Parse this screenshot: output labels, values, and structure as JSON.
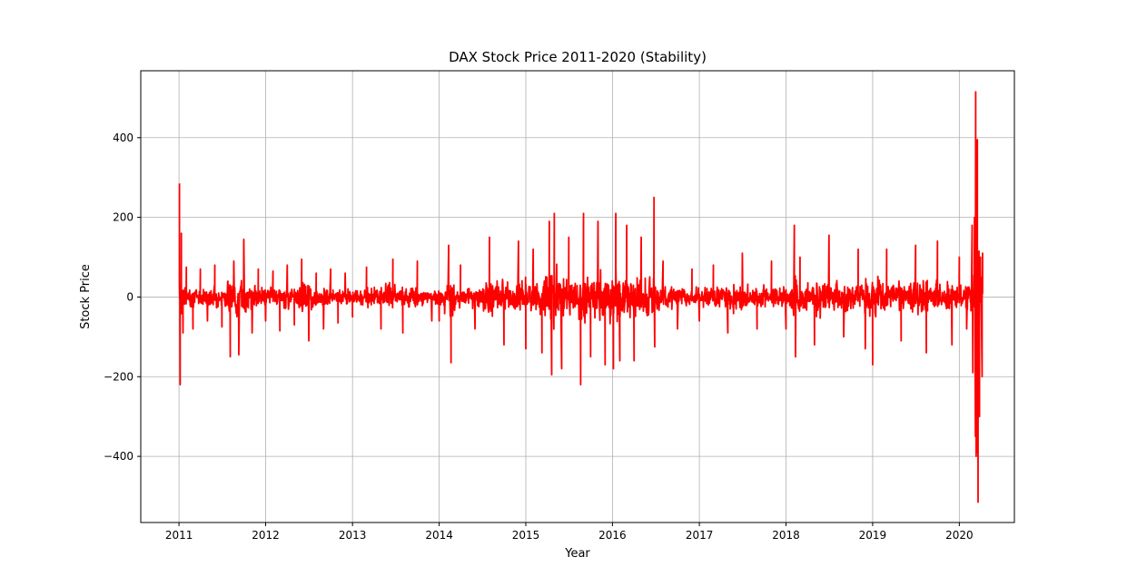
{
  "chart_data": {
    "type": "line",
    "title": "DAX Stock Price 2011-2020 (Stability)",
    "xlabel": "Year",
    "ylabel": "Stock Price",
    "xlim": [
      "2010-07-24",
      "2020-08-20"
    ],
    "ylim": [
      -566,
      568
    ],
    "x_ticks": [
      "2011",
      "2012",
      "2013",
      "2014",
      "2015",
      "2016",
      "2017",
      "2018",
      "2019",
      "2020"
    ],
    "y_ticks": [
      -400,
      -200,
      0,
      200,
      400
    ],
    "y_tick_labels": [
      "−400",
      "−200",
      "0",
      "200",
      "400"
    ],
    "grid": true,
    "legend": "none",
    "colors": {
      "series": "#ff0000"
    },
    "series": [
      {
        "description": "daily change, estimated from figure",
        "x": [
          "2011-01-03",
          "2011-01-06",
          "2011-01-11",
          "2011-01-18",
          "2011-02-01",
          "2011-03-01",
          "2011-04-01",
          "2011-05-01",
          "2011-06-01",
          "2011-07-01",
          "2011-08-05",
          "2011-08-20",
          "2011-09-10",
          "2011-10-01",
          "2011-11-05",
          "2011-12-01",
          "2012-01-01",
          "2012-02-01",
          "2012-03-01",
          "2012-04-01",
          "2012-05-01",
          "2012-06-01",
          "2012-07-01",
          "2012-08-01",
          "2012-09-01",
          "2012-10-01",
          "2012-11-01",
          "2012-12-01",
          "2013-01-01",
          "2013-03-01",
          "2013-05-01",
          "2013-06-20",
          "2013-08-01",
          "2013-10-01",
          "2013-12-01",
          "2014-01-01",
          "2014-02-10",
          "2014-02-20",
          "2014-04-01",
          "2014-06-01",
          "2014-08-01",
          "2014-10-01",
          "2014-12-01",
          "2015-01-01",
          "2015-02-01",
          "2015-03-10",
          "2015-04-10",
          "2015-04-20",
          "2015-05-01",
          "2015-06-01",
          "2015-07-01",
          "2015-08-20",
          "2015-09-01",
          "2015-10-01",
          "2015-11-01",
          "2015-12-01",
          "2016-01-05",
          "2016-01-15",
          "2016-02-01",
          "2016-03-01",
          "2016-04-01",
          "2016-05-01",
          "2016-06-24",
          "2016-06-27",
          "2016-08-01",
          "2016-10-01",
          "2016-12-01",
          "2017-01-01",
          "2017-03-01",
          "2017-05-01",
          "2017-07-01",
          "2017-09-01",
          "2017-11-01",
          "2018-01-01",
          "2018-02-05",
          "2018-02-10",
          "2018-03-01",
          "2018-05-01",
          "2018-07-01",
          "2018-09-01",
          "2018-11-01",
          "2018-12-01",
          "2019-01-01",
          "2019-03-01",
          "2019-05-01",
          "2019-07-01",
          "2019-08-15",
          "2019-10-01",
          "2019-12-01",
          "2020-01-01",
          "2020-02-01",
          "2020-02-24",
          "2020-02-27",
          "2020-03-05",
          "2020-03-09",
          "2020-03-10",
          "2020-03-12",
          "2020-03-13",
          "2020-03-16",
          "2020-03-17",
          "2020-03-18",
          "2020-03-20",
          "2020-03-24",
          "2020-03-26",
          "2020-03-30",
          "2020-04-06",
          "2020-04-08"
        ],
        "y": [
          285,
          -220,
          160,
          -90,
          75,
          -80,
          70,
          -60,
          80,
          -75,
          -150,
          90,
          -145,
          145,
          -90,
          70,
          -60,
          65,
          -85,
          80,
          -70,
          95,
          -110,
          60,
          -80,
          70,
          -65,
          60,
          -50,
          75,
          -80,
          95,
          -90,
          90,
          -60,
          -60,
          130,
          -165,
          80,
          -80,
          150,
          -120,
          140,
          -130,
          120,
          -140,
          190,
          -195,
          210,
          -180,
          150,
          -220,
          210,
          -150,
          190,
          -170,
          -180,
          210,
          -160,
          180,
          -160,
          150,
          250,
          -125,
          90,
          -80,
          70,
          -60,
          80,
          -90,
          110,
          -80,
          90,
          -80,
          180,
          -150,
          100,
          -120,
          155,
          -100,
          120,
          -130,
          -170,
          120,
          -110,
          130,
          -140,
          140,
          -120,
          100,
          -80,
          180,
          -190,
          200,
          -350,
          515,
          -400,
          300,
          -390,
          395,
          -380,
          -515,
          115,
          -300,
          100,
          -200,
          110
        ]
      }
    ]
  }
}
